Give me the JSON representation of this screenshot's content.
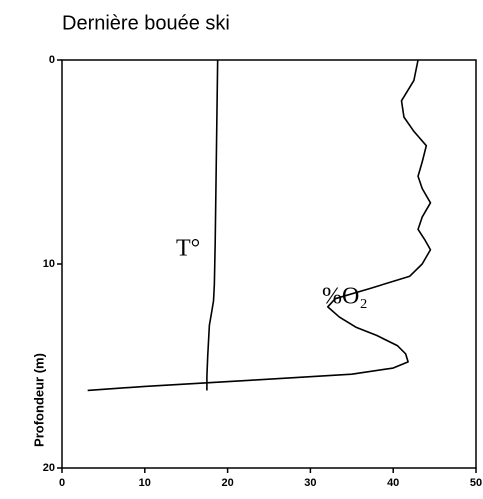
{
  "chart_data": {
    "type": "line",
    "title": "Dernière bouée ski",
    "y_label": "Profondeur (m)",
    "xlim": [
      0,
      50
    ],
    "xticks": [
      0,
      10,
      20,
      30,
      40,
      50
    ],
    "ylim": [
      20,
      0
    ],
    "yticks": [
      0,
      10,
      20
    ],
    "grid": false,
    "series": [
      {
        "name": "T°",
        "color": "#000000",
        "x": [
          18.8,
          18.7,
          18.6,
          18.5,
          18.4,
          18.3,
          18.1,
          17.8,
          17.6,
          17.5,
          17.5
        ],
        "values": [
          0,
          3,
          6,
          9,
          11,
          11.8,
          12.3,
          13,
          14.5,
          15.5,
          16.2
        ]
      },
      {
        "name": "%O₂",
        "color": "#000000",
        "x": [
          43,
          42.5,
          41,
          41.3,
          42.5,
          44,
          43.5,
          43,
          43.5,
          44.5,
          43.5,
          43,
          43.8,
          44.5,
          43.5,
          42,
          37.2,
          33,
          32.1,
          33.5,
          35.5,
          38,
          40.5,
          41.5,
          41.8,
          40,
          35,
          22.7,
          10,
          3.1
        ],
        "values": [
          0,
          1,
          2,
          2.8,
          3.5,
          4.2,
          5,
          5.7,
          6.3,
          7,
          7.7,
          8.3,
          8.8,
          9.3,
          10,
          10.6,
          11.2,
          11.7,
          12.1,
          12.6,
          13.1,
          13.5,
          14,
          14.4,
          14.8,
          15.1,
          15.4,
          15.7,
          16,
          16.2
        ]
      }
    ]
  }
}
